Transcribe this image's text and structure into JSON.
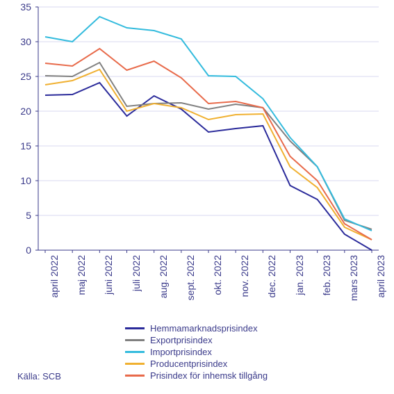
{
  "chart": {
    "type": "line",
    "background_color": "#ffffff",
    "grid_color": "#b0b0e0",
    "axis_color": "#3a3a8a",
    "text_color": "#3a3a8a",
    "ylim": [
      0,
      35
    ],
    "ytick_step": 5,
    "y_ticks": [
      0,
      5,
      10,
      15,
      20,
      25,
      30,
      35
    ],
    "categories": [
      "april 2022",
      "maj 2022",
      "juni 2022",
      "juli 2022",
      "aug. 2022",
      "sept. 2022",
      "okt. 2022",
      "nov. 2022",
      "dec. 2022",
      "jan. 2023",
      "feb. 2023",
      "mars 2023",
      "april 2023"
    ],
    "label_fontsize": 14,
    "legend_fontsize": 13,
    "series": [
      {
        "name": "Hemmamarknadsprisindex",
        "color": "#2a2a9a",
        "values": [
          22.3,
          22.4,
          24.1,
          19.3,
          22.2,
          20.3,
          17.0,
          17.5,
          17.9,
          9.3,
          7.3,
          2.3,
          0.0
        ]
      },
      {
        "name": "Exportprisindex",
        "color": "#808080",
        "values": [
          25.1,
          25.0,
          27.0,
          20.7,
          21.1,
          21.2,
          20.3,
          21.0,
          20.5,
          15.7,
          12.0,
          4.3,
          3.0
        ]
      },
      {
        "name": "Importprisindex",
        "color": "#33bbdd",
        "values": [
          30.7,
          30.0,
          33.6,
          32.0,
          31.6,
          30.4,
          25.1,
          25.0,
          21.8,
          16.2,
          12.0,
          4.5,
          2.8
        ]
      },
      {
        "name": "Producentprisindex",
        "color": "#f0b030",
        "values": [
          23.8,
          24.4,
          26.0,
          20.0,
          21.1,
          20.5,
          18.8,
          19.5,
          19.6,
          12.0,
          9.0,
          3.3,
          1.5
        ]
      },
      {
        "name": "Prisindex för inhemsk tillgång",
        "color": "#e86a4a",
        "values": [
          26.9,
          26.5,
          29.0,
          25.9,
          27.2,
          24.8,
          21.1,
          21.4,
          20.5,
          13.5,
          10.0,
          3.8,
          1.5
        ]
      }
    ]
  },
  "source_label": "Källa: SCB"
}
